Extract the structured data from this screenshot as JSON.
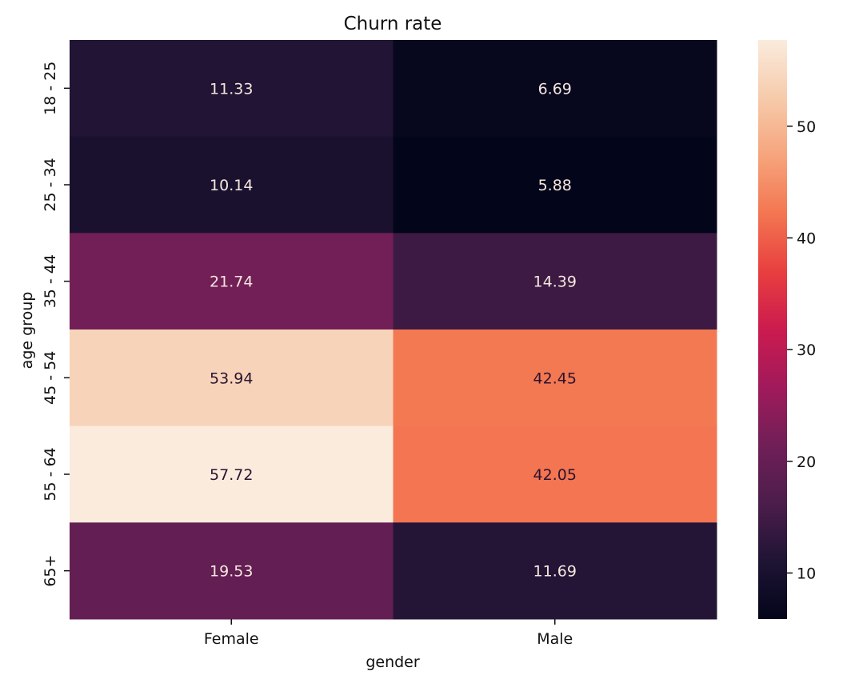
{
  "chart_data": {
    "type": "heatmap",
    "title": "Churn rate",
    "xlabel": "gender",
    "ylabel": "age group",
    "x_categories": [
      "Female",
      "Male"
    ],
    "y_categories": [
      "18 - 25",
      "25 - 34",
      "35 - 44",
      "45 - 54",
      "55 - 64",
      "65+"
    ],
    "values": [
      [
        11.33,
        6.69
      ],
      [
        10.14,
        5.88
      ],
      [
        21.74,
        14.39
      ],
      [
        53.94,
        42.45
      ],
      [
        57.72,
        42.05
      ],
      [
        19.53,
        11.69
      ]
    ],
    "value_labels": [
      [
        "11.33",
        "6.69"
      ],
      [
        "10.14",
        "5.88"
      ],
      [
        "21.74",
        "14.39"
      ],
      [
        "53.94",
        "42.45"
      ],
      [
        "57.72",
        "42.05"
      ],
      [
        "19.53",
        "11.69"
      ]
    ],
    "colorbar": {
      "min": 5.88,
      "max": 57.72,
      "ticks": [
        10,
        20,
        30,
        40,
        50
      ],
      "tick_labels": [
        "10",
        "20",
        "30",
        "40",
        "50"
      ]
    },
    "colormap": "rocket",
    "colormap_stops": [
      "#03051a",
      "#1f1434",
      "#4c1d4b",
      "#701f57",
      "#a11a5b",
      "#cb1b4f",
      "#e83f3f",
      "#f37651",
      "#f6a47c",
      "#f6cbab",
      "#faebdd"
    ]
  }
}
